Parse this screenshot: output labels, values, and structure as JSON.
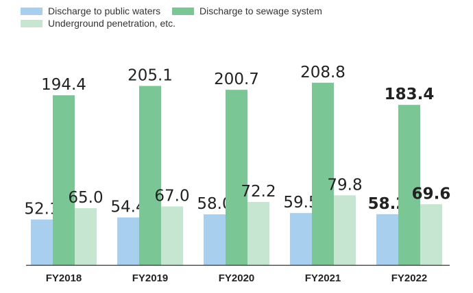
{
  "chart_data": {
    "type": "bar",
    "categories": [
      "FY2018",
      "FY2019",
      "FY2020",
      "FY2021",
      "FY2022"
    ],
    "series": [
      {
        "name": "Discharge to public waters",
        "color": "#a9cfef",
        "values": [
          52.1,
          54.4,
          58.0,
          59.5,
          58.2
        ]
      },
      {
        "name": "Discharge to sewage system",
        "color": "#7bc695",
        "values": [
          194.4,
          205.1,
          200.7,
          208.8,
          183.4
        ]
      },
      {
        "name": "Underground penetration, etc.",
        "color": "#c7e6d1",
        "values": [
          65.0,
          67.0,
          72.2,
          79.8,
          69.6
        ]
      }
    ],
    "highlight_category": "FY2022",
    "legend_position": "top-left",
    "ylim": [
      0,
      230
    ],
    "grid": false
  }
}
